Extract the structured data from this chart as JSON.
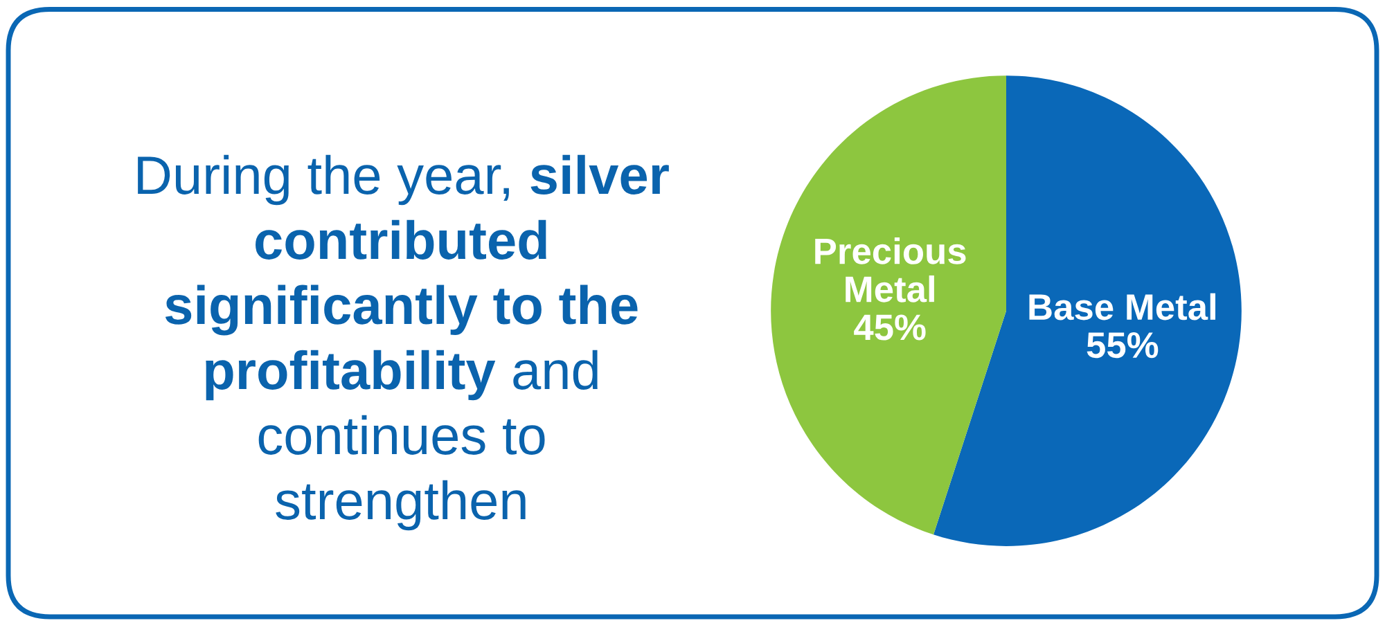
{
  "chart_data": [
    {
      "type": "other",
      "annotations": [
        "During the year,",
        "silver contributed significantly to the profitability",
        "and continues to strengthen"
      ]
    },
    {
      "type": "pie",
      "categories": [
        "Base Metal",
        "Precious Metal"
      ],
      "values": [
        55,
        45
      ],
      "colors": [
        "#0a68b8",
        "#8dc63f"
      ],
      "value_labels": [
        "55%",
        "45%"
      ]
    }
  ]
}
